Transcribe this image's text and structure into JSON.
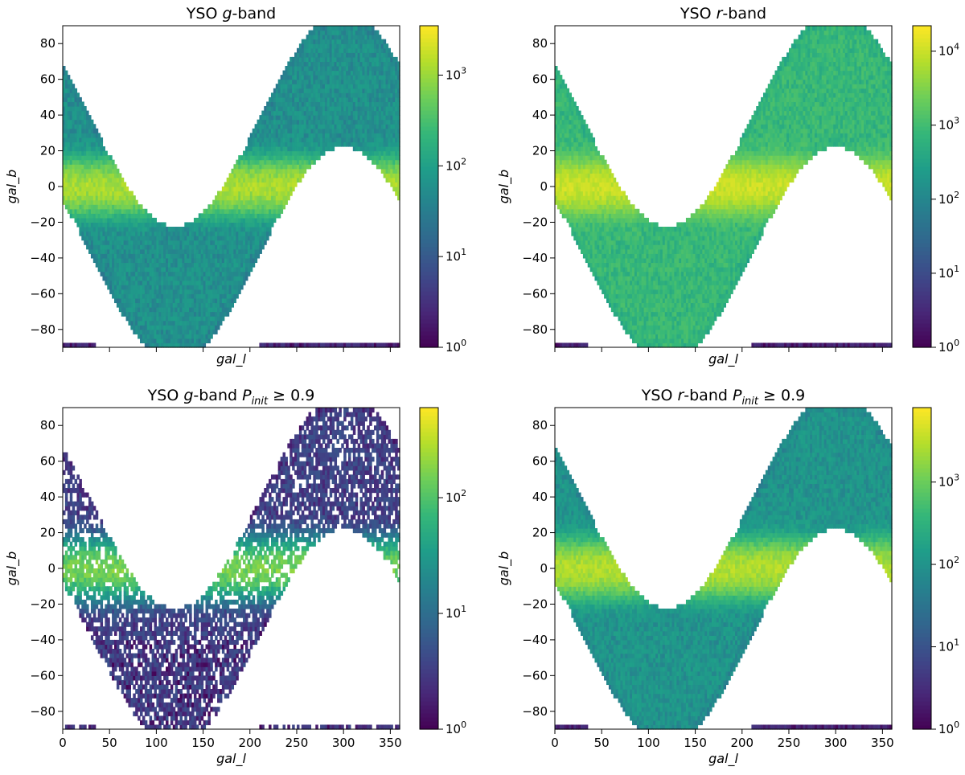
{
  "figure": {
    "panels": [
      {
        "title": "YSO g-band",
        "title_parts": {
          "prefix": "YSO ",
          "band": "g",
          "suffix": "-band",
          "cut": ""
        },
        "xlabel": "gal_l",
        "ylabel": "gal_b"
      },
      {
        "title": "YSO r-band",
        "title_parts": {
          "prefix": "YSO ",
          "band": "r",
          "suffix": "-band",
          "cut": ""
        },
        "xlabel": "gal_l",
        "ylabel": "gal_b"
      },
      {
        "title": "YSO g-band P_init ≥ 0.9",
        "title_parts": {
          "prefix": "YSO ",
          "band": "g",
          "suffix": "-band ",
          "cut": "P",
          "cut_sub": "init",
          "cut_rel": " ≥ 0.9"
        },
        "xlabel": "gal_l",
        "ylabel": "gal_b"
      },
      {
        "title": "YSO r-band P_init ≥ 0.9",
        "title_parts": {
          "prefix": "YSO ",
          "band": "r",
          "suffix": "-band ",
          "cut": "P",
          "cut_sub": "init",
          "cut_rel": " ≥ 0.9"
        },
        "xlabel": "gal_l",
        "ylabel": "gal_b"
      }
    ],
    "x_ticks": [
      "0",
      "50",
      "100",
      "150",
      "200",
      "250",
      "300",
      "350"
    ],
    "y_ticks": [
      "80",
      "60",
      "40",
      "20",
      "0",
      "−20",
      "−40",
      "−60",
      "−80"
    ]
  },
  "chart_data": [
    {
      "type": "heatmap",
      "title": "YSO g-band",
      "xlabel": "gal_l",
      "ylabel": "gal_b",
      "xlim": [
        0,
        360
      ],
      "ylim": [
        -90,
        90
      ],
      "x_tick_values": [
        0,
        50,
        100,
        150,
        200,
        250,
        300,
        350
      ],
      "x_tick_labels_shown": false,
      "y_tick_values": [
        80,
        60,
        40,
        20,
        0,
        -20,
        -40,
        -60,
        -80
      ],
      "colorbar": {
        "scale": "log",
        "min": 1,
        "max": 3500,
        "tick_labels": [
          "10^0",
          "10^1",
          "10^2",
          "10^3"
        ],
        "tick_values": [
          1,
          10,
          100,
          1000
        ],
        "colormap": "viridis"
      },
      "footprint": "sinusoidal band, centre b ≈ 60·sin((l−210)°·π/180), width ≈ 76° (cut at −90)",
      "intensity": {
        "typical": 70,
        "plane_peak": 1500,
        "density": 1.0
      }
    },
    {
      "type": "heatmap",
      "title": "YSO r-band",
      "xlabel": "gal_l",
      "ylabel": "gal_b",
      "xlim": [
        0,
        360
      ],
      "ylim": [
        -90,
        90
      ],
      "x_tick_values": [
        0,
        50,
        100,
        150,
        200,
        250,
        300,
        350
      ],
      "x_tick_labels_shown": false,
      "y_tick_values": [
        80,
        60,
        40,
        20,
        0,
        -20,
        -40,
        -60,
        -80
      ],
      "colorbar": {
        "scale": "log",
        "min": 1,
        "max": 22000,
        "tick_labels": [
          "10^0",
          "10^1",
          "10^2",
          "10^3",
          "10^4"
        ],
        "tick_values": [
          1,
          10,
          100,
          1000,
          10000
        ],
        "colormap": "viridis"
      },
      "footprint": "sinusoidal band, centre b ≈ 60·sin((l−210)°·π/180), width ≈ 76° (cut at −90)",
      "intensity": {
        "typical": 900,
        "plane_peak": 12000,
        "density": 1.0
      }
    },
    {
      "type": "heatmap",
      "title": "YSO g-band P_init ≥ 0.9",
      "xlabel": "gal_l",
      "ylabel": "gal_b",
      "xlim": [
        0,
        360
      ],
      "ylim": [
        -90,
        90
      ],
      "x_tick_values": [
        0,
        50,
        100,
        150,
        200,
        250,
        300,
        350
      ],
      "y_tick_values": [
        80,
        60,
        40,
        20,
        0,
        -20,
        -40,
        -60,
        -80
      ],
      "colorbar": {
        "scale": "log",
        "min": 1,
        "max": 600,
        "tick_labels": [
          "10^0",
          "10^1",
          "10^2"
        ],
        "tick_values": [
          1,
          10,
          100
        ],
        "colormap": "viridis"
      },
      "footprint": "sinusoidal band, centre b ≈ 60·sin((l−210)°·π/180), width ≈ 76° (cut at −90)",
      "intensity": {
        "typical": 4,
        "plane_peak": 200,
        "density": 0.75
      }
    },
    {
      "type": "heatmap",
      "title": "YSO r-band P_init ≥ 0.9",
      "xlabel": "gal_l",
      "ylabel": "gal_b",
      "xlim": [
        0,
        360
      ],
      "ylim": [
        -90,
        90
      ],
      "x_tick_values": [
        0,
        50,
        100,
        150,
        200,
        250,
        300,
        350
      ],
      "y_tick_values": [
        80,
        60,
        40,
        20,
        0,
        -20,
        -40,
        -60,
        -80
      ],
      "colorbar": {
        "scale": "log",
        "min": 1,
        "max": 8000,
        "tick_labels": [
          "10^0",
          "10^1",
          "10^2",
          "10^3"
        ],
        "tick_values": [
          1,
          10,
          100,
          1000
        ],
        "colormap": "viridis"
      },
      "footprint": "sinusoidal band, centre b ≈ 60·sin((l−210)°·π/180), width ≈ 76° (cut at −90)",
      "intensity": {
        "typical": 120,
        "plane_peak": 3500,
        "density": 1.0
      }
    }
  ]
}
